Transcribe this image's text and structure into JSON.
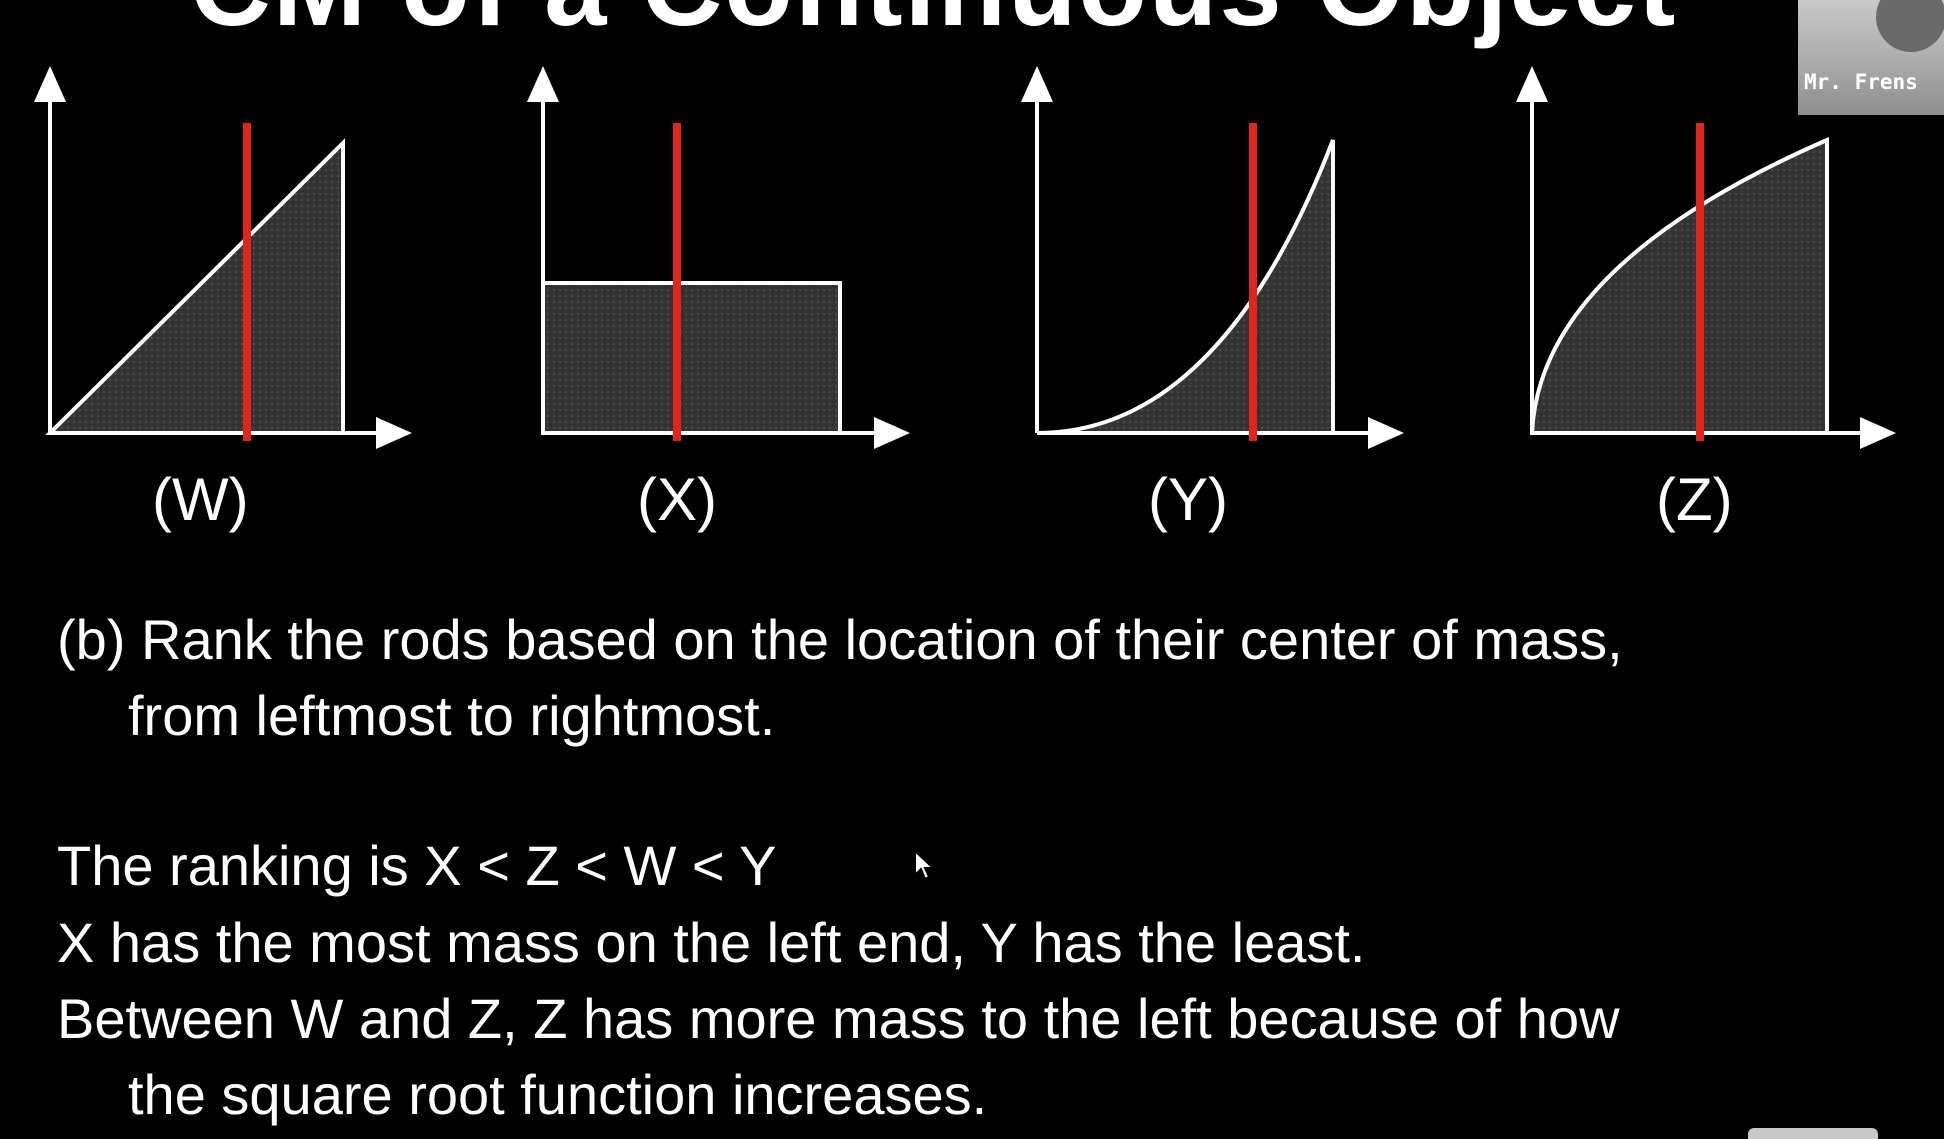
{
  "slide": {
    "title_fragment": "CM of a Continuous Object",
    "graphs": [
      {
        "label": "(W)",
        "shape": "linear-increasing"
      },
      {
        "label": "(X)",
        "shape": "constant"
      },
      {
        "label": "(Y)",
        "shape": "quadratic-increasing"
      },
      {
        "label": "(Z)",
        "shape": "square-root-increasing"
      }
    ],
    "question_line1": "(b)  Rank the rods based on the location of their center of mass,",
    "question_line2": "from leftmost to rightmost.",
    "answer_line1": "The ranking is X < Z < W < Y",
    "answer_line2": "X has the most mass on the left end, Y has the least.",
    "answer_line3": "Between W and Z, Z has more mass to the left because of how",
    "answer_line4": "the square root function increases."
  },
  "webcam": {
    "name": "Mr. Frens"
  },
  "colors": {
    "background": "#000000",
    "foreground": "#ffffff",
    "center_line": "#e0261c",
    "fill": "#3a3a3a"
  }
}
